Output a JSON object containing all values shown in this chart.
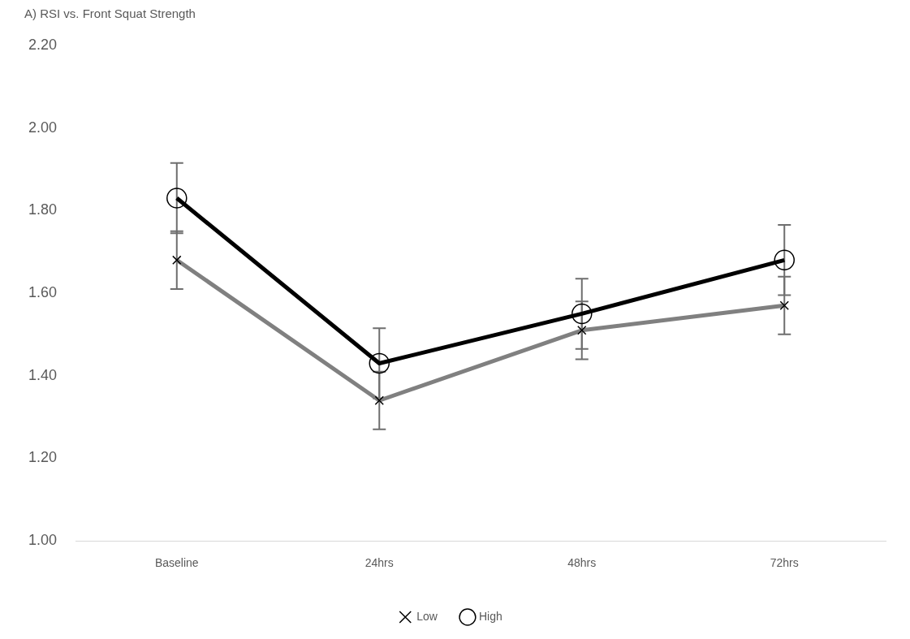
{
  "chart_data": {
    "type": "line",
    "title": "A) RSI vs. Front Squat Strength",
    "categories": [
      "Baseline",
      "24hrs",
      "48hrs",
      "72hrs"
    ],
    "series": [
      {
        "name": "Low",
        "color": "#808080",
        "marker": "cross",
        "values": [
          1.68,
          1.34,
          1.51,
          1.57
        ],
        "errors": [
          0.07,
          0.07,
          0.07,
          0.07
        ]
      },
      {
        "name": "High",
        "color": "#000000",
        "marker": "circle",
        "values": [
          1.83,
          1.43,
          1.55,
          1.68
        ],
        "errors": [
          0.085,
          0.085,
          0.085,
          0.085
        ]
      }
    ],
    "ylim": [
      1.0,
      2.2
    ],
    "yticks": [
      {
        "value": 1.0,
        "label": "1.00"
      },
      {
        "value": 1.2,
        "label": "1.20"
      },
      {
        "value": 1.4,
        "label": "1.40"
      },
      {
        "value": 1.6,
        "label": "1.60"
      },
      {
        "value": 1.8,
        "label": "1.80"
      },
      {
        "value": 2.0,
        "label": "2.00"
      },
      {
        "value": 2.2,
        "label": "2.20"
      }
    ],
    "grid": false,
    "legend": "bottom"
  }
}
